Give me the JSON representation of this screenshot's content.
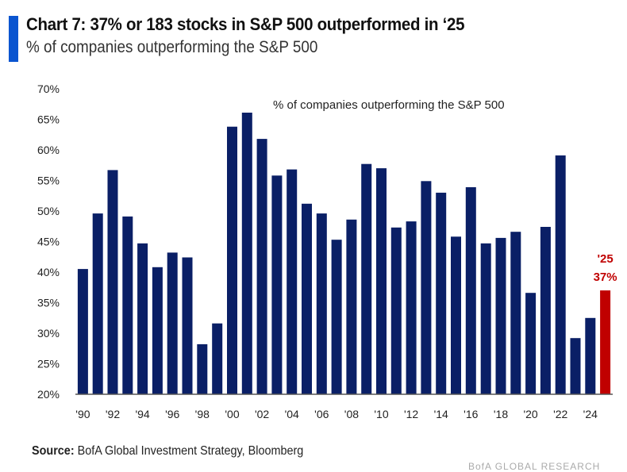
{
  "header": {
    "title": "Chart 7: 37% or 183 stocks in S&P 500 outperformed in ‘25",
    "subtitle": "% of companies outperforming the S&P 500"
  },
  "footer": {
    "source_label": "Source:",
    "source_text": " BofA Global Investment Strategy, Bloomberg",
    "watermark": "BofA GLOBAL RESEARCH"
  },
  "colors": {
    "bar": "#0a1f66",
    "highlight": "#c00000",
    "accent": "#0a55d0"
  },
  "chart_data": {
    "type": "bar",
    "title": "Chart 7: 37% or 183 stocks in S&P 500 outperformed in ‘25",
    "subtitle": "% of companies outperforming the S&P 500",
    "legend": "% of companies outperforming the S&P 500",
    "legend_position": "top-center",
    "xlabel": "",
    "ylabel": "",
    "ylim": [
      20,
      70
    ],
    "y_ticks": [
      20,
      25,
      30,
      35,
      40,
      45,
      50,
      55,
      60,
      65,
      70
    ],
    "y_tick_labels": [
      "20%",
      "25%",
      "30%",
      "35%",
      "40%",
      "45%",
      "50%",
      "55%",
      "60%",
      "65%",
      "70%"
    ],
    "grid": false,
    "categories": [
      "1990",
      "1991",
      "1992",
      "1993",
      "1994",
      "1995",
      "1996",
      "1997",
      "1998",
      "1999",
      "2000",
      "2001",
      "2002",
      "2003",
      "2004",
      "2005",
      "2006",
      "2007",
      "2008",
      "2009",
      "2010",
      "2011",
      "2012",
      "2013",
      "2014",
      "2015",
      "2016",
      "2017",
      "2018",
      "2019",
      "2020",
      "2021",
      "2022",
      "2023",
      "2024",
      "2025"
    ],
    "x_tick_labels": [
      "'90",
      "",
      "'92",
      "",
      "'94",
      "",
      "'96",
      "",
      "'98",
      "",
      "'00",
      "",
      "'02",
      "",
      "'04",
      "",
      "'06",
      "",
      "'08",
      "",
      "'10",
      "",
      "'12",
      "",
      "'14",
      "",
      "'16",
      "",
      "'18",
      "",
      "'20",
      "",
      "'22",
      "",
      "'24",
      ""
    ],
    "values": [
      40.5,
      49.6,
      56.7,
      49.1,
      44.7,
      40.8,
      43.2,
      42.4,
      28.2,
      31.6,
      63.8,
      66.1,
      61.8,
      55.8,
      56.8,
      51.2,
      49.6,
      45.3,
      48.6,
      57.7,
      57.0,
      47.3,
      48.3,
      54.9,
      53.0,
      45.8,
      53.9,
      44.7,
      45.6,
      46.6,
      36.6,
      47.4,
      59.1,
      29.2,
      32.5,
      37.0
    ],
    "highlight_index": 35,
    "annotation": {
      "line1": "'25",
      "line2": "37%"
    }
  }
}
